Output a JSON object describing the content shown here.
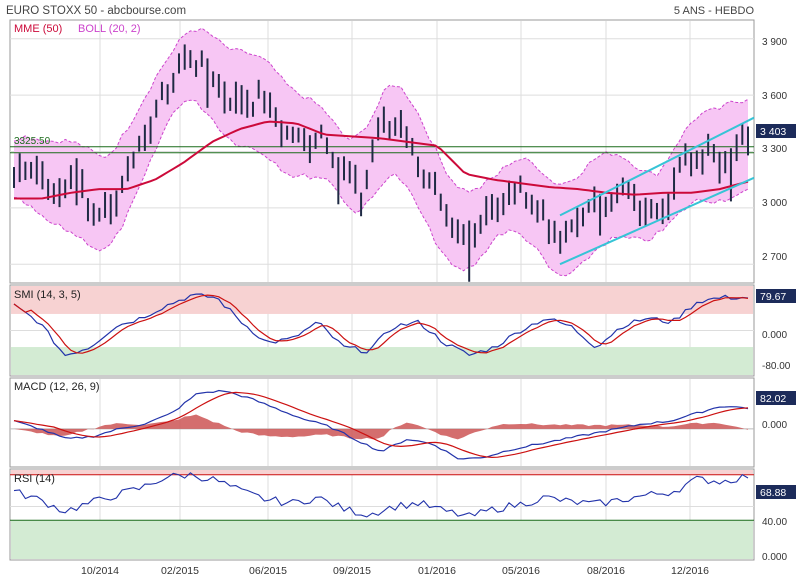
{
  "header": {
    "title": "EURO STOXX 50 - abcbourse.com",
    "period": "5 ANS - HEBDO"
  },
  "colors": {
    "candle": "#1f2a44",
    "mme": "#cc0a3a",
    "boll": "#cc44cc",
    "boll_fill": "#f7c6f4",
    "channel": "#36c4d6",
    "hline": "#1a6b1a",
    "panel_pink": "#f7d2d2",
    "panel_green": "#d3ebd3",
    "blue": "#2233aa",
    "red": "#cc1111",
    "hist": "#cc5555",
    "last_box": "#1c2b5a"
  },
  "x_axis": {
    "ticks": [
      "10/2014",
      "02/2015",
      "06/2015",
      "09/2015",
      "01/2016",
      "05/2016",
      "08/2016",
      "12/2016"
    ]
  },
  "main_panel": {
    "legend": [
      "MME (50)",
      "BOLL (20, 2)"
    ],
    "y_ticks": [
      "3 900",
      "3 600",
      "3 300",
      "3 000",
      "2 700"
    ],
    "hline_label": "3325.50",
    "last_value": "3 403"
  },
  "smi_panel": {
    "label": "SMI (14, 3, 5)",
    "y_ticks": [
      "0.000",
      "-80.00"
    ],
    "last_value": "79.67"
  },
  "macd_panel": {
    "label": "MACD (12, 26, 9)",
    "y_ticks": [
      "0.000"
    ],
    "last_value": "82.02"
  },
  "rsi_panel": {
    "label": "RSI (14)",
    "y_ticks": [
      "40.00",
      "0.000"
    ],
    "last_value": "68.88"
  },
  "chart_data": {
    "type": "candlestick",
    "x_tick_labels": [
      "10/2014",
      "02/2015",
      "06/2015",
      "09/2015",
      "01/2016",
      "05/2016",
      "08/2016",
      "12/2016"
    ],
    "price": {
      "y_range": [
        2600,
        4000
      ],
      "y_ticks": [
        3900,
        3600,
        3300,
        3000,
        2700
      ],
      "horizontal_line": 3325.5,
      "last": 3403,
      "close_anchors": [
        3180,
        3240,
        3050,
        3200,
        2950,
        3050,
        3300,
        3500,
        3750,
        3800,
        3650,
        3550,
        3600,
        3450,
        3350,
        3400,
        3250,
        3050,
        3450,
        3450,
        3200,
        3000,
        2800,
        2950,
        3050,
        3100,
        2950,
        2800,
        3000,
        3050,
        3100,
        2950,
        3050,
        3250,
        3300,
        3250,
        3403
      ],
      "mme50_anchors": [
        3050,
        3050,
        3080,
        3100,
        3100,
        3150,
        3240,
        3350,
        3420,
        3460,
        3450,
        3390,
        3380,
        3370,
        3350,
        3330,
        3180,
        3150,
        3130,
        3110,
        3100,
        3080,
        3070,
        3080,
        3080,
        3100,
        3140
      ]
    },
    "smi": {
      "y_range": [
        -110,
        110
      ],
      "y_ticks": [
        0,
        -80
      ],
      "last": 79.67
    },
    "macd": {
      "y_range": [
        -150,
        200
      ],
      "y_ticks": [
        0
      ],
      "last": 82.02
    },
    "rsi": {
      "y_range": [
        -5,
        75
      ],
      "y_ticks": [
        40,
        0
      ],
      "last": 68.88,
      "overbought": 70,
      "oversold": 30
    }
  }
}
